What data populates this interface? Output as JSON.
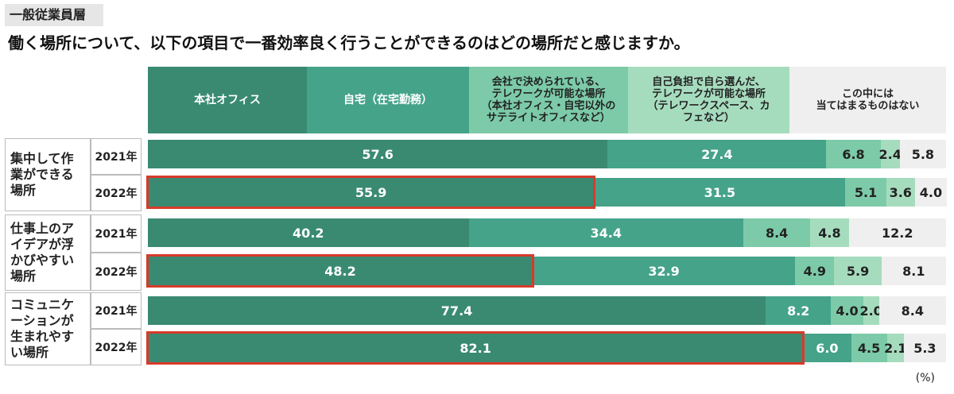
{
  "tag": "一般従業員層",
  "title": "働く場所について、以下の項目で一番効率良く行うことができるのはどの場所だと感じますか。",
  "unit": "(%)",
  "colors": {
    "s1": "#3a8a72",
    "s2": "#45a38a",
    "s3": "#7ccaa8",
    "s4": "#a6dcbe",
    "s5": "#efefef",
    "highlight": "#d83a2a"
  },
  "headers": [
    {
      "lines": [
        "本社オフィス"
      ]
    },
    {
      "lines": [
        "自宅（在宅勤務）"
      ]
    },
    {
      "lines": [
        "会社で決められている、",
        "テレワークが可能な場所",
        "（本社オフィス・自宅以外の",
        "サテライトオフィスなど）"
      ]
    },
    {
      "lines": [
        "自己負担で自ら選んだ、",
        "テレワークが可能な場所",
        "（テレワークスペース、カ",
        "フェなど）"
      ]
    },
    {
      "lines": [
        "この中には",
        "当てはまるものはない"
      ]
    }
  ],
  "groups": [
    {
      "label": "集中して作業ができる場所"
    },
    {
      "label": "仕事上のアイデアが浮かびやすい場所"
    },
    {
      "label": "コミュニケーションが生まれやすい場所"
    }
  ],
  "chart_data": {
    "type": "bar",
    "orientation": "horizontal",
    "stacked": true,
    "title": "働く場所について、以下の項目で一番効率良く行うことができるのはどの場所だと感じますか。",
    "categories": [
      "集中して作業ができる場所 2021年",
      "集中して作業ができる場所 2022年",
      "仕事上のアイデアが浮かびやすい場所 2021年",
      "仕事上のアイデアが浮かびやすい場所 2022年",
      "コミュニケーションが生まれやすい場所 2021年",
      "コミュニケーションが生まれやすい場所 2022年"
    ],
    "year_labels": [
      "2021年",
      "2022年",
      "2021年",
      "2022年",
      "2021年",
      "2022年"
    ],
    "series": [
      {
        "name": "本社オフィス",
        "values": [
          57.6,
          55.9,
          40.2,
          48.2,
          77.4,
          82.1
        ]
      },
      {
        "name": "自宅（在宅勤務）",
        "values": [
          27.4,
          31.5,
          34.4,
          32.9,
          8.2,
          6.0
        ]
      },
      {
        "name": "会社で決められている、テレワークが可能な場所（本社オフィス・自宅以外のサテライトオフィスなど）",
        "values": [
          6.8,
          5.1,
          8.4,
          4.9,
          4.0,
          4.5
        ]
      },
      {
        "name": "自己負担で自ら選んだ、テレワークが可能な場所（テレワークスペース、カフェなど）",
        "values": [
          2.4,
          3.6,
          4.8,
          5.9,
          2.0,
          2.1
        ]
      },
      {
        "name": "この中には当てはまるものはない",
        "values": [
          5.8,
          4.0,
          12.2,
          8.1,
          8.4,
          5.3
        ]
      }
    ],
    "highlighted": [
      {
        "row": 1,
        "series": 0
      },
      {
        "row": 3,
        "series": 0
      },
      {
        "row": 5,
        "series": 0
      }
    ],
    "xlim": [
      0,
      100
    ],
    "unit": "%"
  }
}
